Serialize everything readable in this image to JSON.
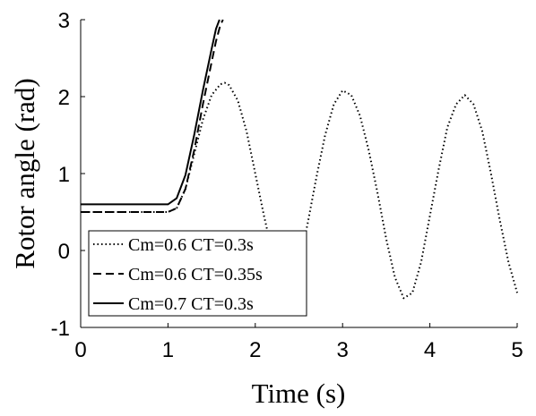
{
  "chart_data": {
    "type": "line",
    "title": "",
    "xlabel": "Time (s)",
    "ylabel": "Rotor angle (rad)",
    "xlim": [
      0,
      5
    ],
    "ylim": [
      -1,
      3
    ],
    "x_ticks": [
      "0",
      "1",
      "2",
      "3",
      "4",
      "5"
    ],
    "y_ticks": [
      "-1",
      "0",
      "1",
      "2",
      "3"
    ],
    "grid": false,
    "legend_position": "bottom-left",
    "series": [
      {
        "name": "Cm=0.6 CT=0.3s",
        "style": "dotted",
        "color": "#000000",
        "x": [
          0,
          1.0,
          1.1,
          1.2,
          1.3,
          1.4,
          1.5,
          1.6,
          1.65,
          1.7,
          1.8,
          1.9,
          2.0,
          2.1,
          2.2,
          2.3,
          2.4,
          2.5,
          2.6,
          2.7,
          2.8,
          2.9,
          3.0,
          3.1,
          3.2,
          3.3,
          3.4,
          3.5,
          3.6,
          3.7,
          3.8,
          3.9,
          4.0,
          4.1,
          4.2,
          4.3,
          4.4,
          4.5,
          4.6,
          4.7,
          4.8,
          4.9,
          5.0
        ],
        "y": [
          0.5,
          0.5,
          0.55,
          0.8,
          1.25,
          1.7,
          2.02,
          2.16,
          2.18,
          2.15,
          1.95,
          1.55,
          1.0,
          0.45,
          -0.05,
          -0.45,
          -0.5,
          -0.2,
          0.35,
          0.95,
          1.5,
          1.9,
          2.08,
          2.02,
          1.75,
          1.3,
          0.75,
          0.15,
          -0.35,
          -0.62,
          -0.55,
          -0.15,
          0.45,
          1.05,
          1.6,
          1.9,
          2.02,
          1.9,
          1.55,
          1.0,
          0.4,
          -0.15,
          -0.55
        ]
      },
      {
        "name": "Cm=0.6 CT=0.35s",
        "style": "dashed",
        "color": "#000000",
        "x": [
          0,
          1.0,
          1.1,
          1.2,
          1.3,
          1.4,
          1.5,
          1.55,
          1.6,
          1.63
        ],
        "y": [
          0.5,
          0.5,
          0.55,
          0.8,
          1.3,
          1.9,
          2.45,
          2.72,
          2.93,
          3.0
        ]
      },
      {
        "name": "Cm=0.7 CT=0.3s",
        "style": "solid",
        "color": "#000000",
        "x": [
          0,
          1.0,
          1.1,
          1.2,
          1.3,
          1.4,
          1.5,
          1.55,
          1.59
        ],
        "y": [
          0.6,
          0.6,
          0.68,
          0.98,
          1.5,
          2.08,
          2.62,
          2.88,
          3.0
        ]
      }
    ]
  }
}
